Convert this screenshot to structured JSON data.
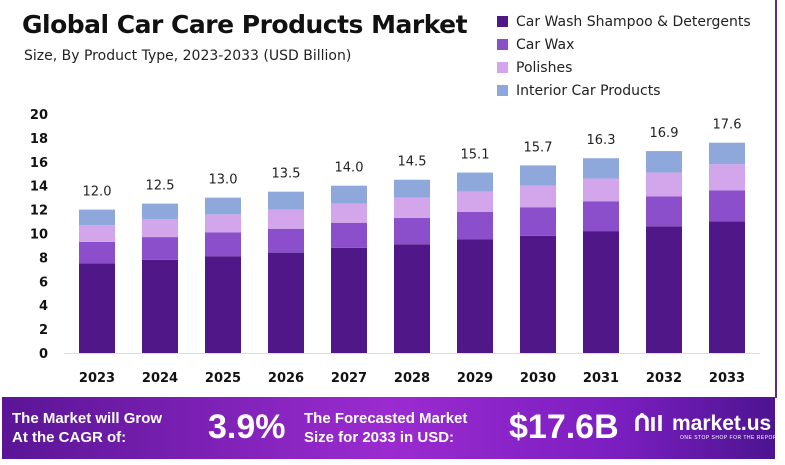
{
  "chart_data": {
    "type": "bar",
    "stacked": true,
    "title": "Global Car Care Products Market",
    "subtitle": "Size, By Product Type, 2023-2033 (USD Billion)",
    "categories": [
      "2023",
      "2024",
      "2025",
      "2026",
      "2027",
      "2028",
      "2029",
      "2030",
      "2031",
      "2032",
      "2033"
    ],
    "series": [
      {
        "name": "Car Wash Shampoo & Detergents",
        "color": "#4f1787",
        "values": [
          7.5,
          7.8,
          8.1,
          8.4,
          8.8,
          9.1,
          9.5,
          9.8,
          10.2,
          10.6,
          11.0
        ]
      },
      {
        "name": "Car Wax",
        "color": "#8b4fcb",
        "values": [
          1.8,
          1.9,
          2.0,
          2.0,
          2.1,
          2.2,
          2.3,
          2.4,
          2.5,
          2.5,
          2.6
        ]
      },
      {
        "name": "Polishes",
        "color": "#d3a5ea",
        "values": [
          1.4,
          1.5,
          1.5,
          1.6,
          1.6,
          1.7,
          1.7,
          1.8,
          1.9,
          2.0,
          2.2
        ]
      },
      {
        "name": "Interior Car Products",
        "color": "#8ea8db",
        "values": [
          1.3,
          1.3,
          1.4,
          1.5,
          1.5,
          1.5,
          1.6,
          1.7,
          1.7,
          1.8,
          1.8
        ]
      }
    ],
    "totals": [
      "12.0",
      "12.5",
      "13.0",
      "13.5",
      "14.0",
      "14.5",
      "15.1",
      "15.7",
      "16.3",
      "16.9",
      "17.6"
    ],
    "yticks": [
      "0",
      "2",
      "4",
      "6",
      "8",
      "10",
      "12",
      "14",
      "16",
      "18",
      "20"
    ],
    "ylim": [
      0,
      20
    ],
    "grid": false,
    "legend_position": "top-right"
  },
  "banner": {
    "cagr_label_1": "The Market will Grow",
    "cagr_label_2": "At the CAGR of:",
    "cagr_value": "3.9%",
    "forecast_label_1": "The Forecasted Market",
    "forecast_label_2": "Size for 2033 in USD:",
    "forecast_value": "$17.6B",
    "logo_text": "market.us",
    "logo_tagline": "ONE STOP SHOP FOR THE REPORTS"
  }
}
